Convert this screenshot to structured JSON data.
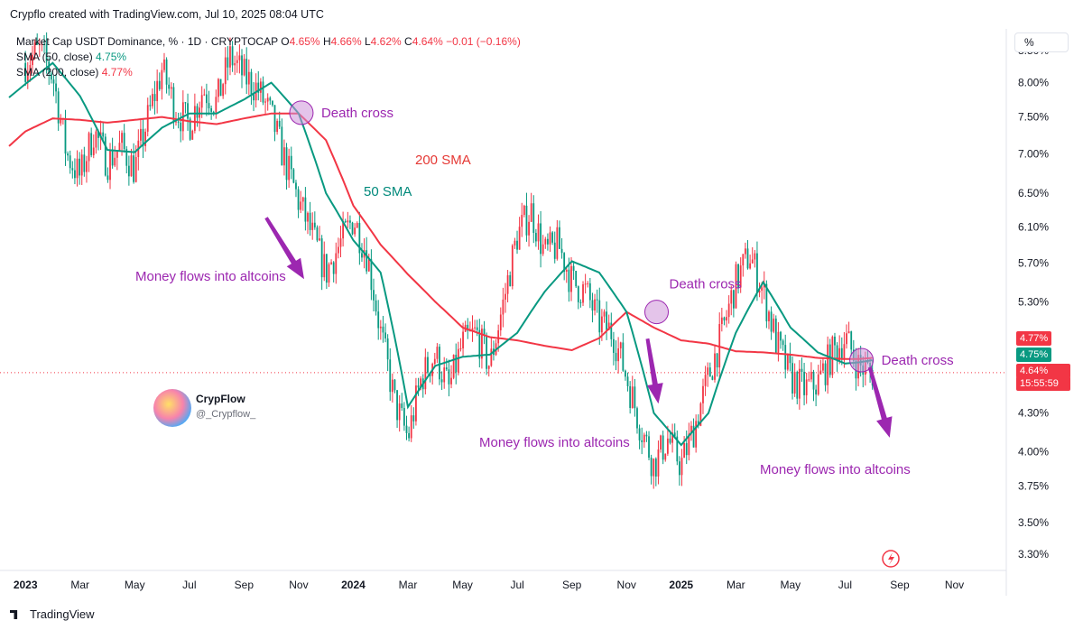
{
  "header": {
    "text": "Crypflo created with TradingView.com, Jul 10, 2025 08:04 UTC"
  },
  "legend": {
    "title": "Market Cap USDT Dominance, % · 1D · CRYPTOCAP",
    "o_label": "O",
    "o": "4.65%",
    "h_label": "H",
    "h": "4.66%",
    "l_label": "L",
    "l": "4.62%",
    "c_label": "C",
    "c": "4.64%",
    "change": "−0.01 (−0.16%)",
    "sma50_label": "SMA (50, close)",
    "sma50_value": "4.75%",
    "sma200_label": "SMA (200, close)",
    "sma200_value": "4.77%"
  },
  "scale_button": "%",
  "badges": {
    "sma200": "4.77%",
    "sma50": "4.75%",
    "price": "4.64%",
    "countdown": "15:55:59"
  },
  "brand": {
    "name": "CrypFlow",
    "handle": "@_Crypflow_"
  },
  "footer": {
    "logo_text": "TradingView"
  },
  "colors": {
    "up": "#089981",
    "down": "#f23645",
    "sma50": "#089981",
    "sma200": "#f23645",
    "annotation": "#9c27b0"
  },
  "chart_data": {
    "type": "line",
    "title": "Market Cap USDT Dominance, % · 1D · CRYPTOCAP",
    "y_ticks": [
      "8.50%",
      "8.00%",
      "7.50%",
      "7.00%",
      "6.50%",
      "6.10%",
      "5.70%",
      "5.30%",
      "4.30%",
      "4.00%",
      "3.75%",
      "3.50%",
      "3.30%"
    ],
    "y_tick_values": [
      8.5,
      8.0,
      7.5,
      7.0,
      6.5,
      6.1,
      5.7,
      5.3,
      4.3,
      4.0,
      3.75,
      3.5,
      3.3
    ],
    "x_ticks": [
      "2023",
      "Mar",
      "May",
      "Jul",
      "Sep",
      "Nov",
      "2024",
      "Mar",
      "May",
      "Jul",
      "Sep",
      "Nov",
      "2025",
      "Mar",
      "May",
      "Jul",
      "Sep",
      "Nov"
    ],
    "x_tick_positions": [
      0,
      2,
      4,
      6,
      8,
      10,
      12,
      14,
      16,
      18,
      20,
      22,
      24,
      26,
      28,
      30,
      32,
      34
    ],
    "ylim": [
      3.2,
      8.85
    ],
    "xlim": [
      -0.6,
      35.8
    ],
    "series": [
      {
        "name": "USDT Dominance (close)",
        "style": "candles",
        "x": [
          0,
          0.5,
          1,
          1.5,
          2,
          2.5,
          3,
          3.5,
          4,
          4.5,
          5,
          5.5,
          6,
          6.5,
          7,
          7.5,
          8,
          8.5,
          9,
          9.5,
          10,
          10.5,
          11,
          11.5,
          12,
          12.5,
          13,
          13.5,
          14,
          14.5,
          15,
          15.5,
          16,
          16.5,
          17,
          17.5,
          18,
          18.5,
          19,
          19.5,
          20,
          20.5,
          21,
          21.5,
          22,
          22.5,
          23,
          23.5,
          24,
          24.5,
          25,
          25.5,
          26,
          26.5,
          27,
          27.5,
          28,
          28.5,
          29,
          29.5,
          30,
          30.5,
          31
        ],
        "y": [
          8.3,
          8.5,
          8.1,
          7.0,
          6.7,
          7.3,
          6.9,
          7.1,
          6.8,
          7.5,
          8.2,
          7.6,
          7.4,
          7.9,
          7.7,
          8.4,
          8.1,
          7.9,
          7.5,
          6.9,
          6.4,
          6.0,
          5.6,
          5.9,
          6.2,
          5.8,
          5.0,
          4.4,
          4.1,
          4.6,
          4.8,
          4.5,
          4.9,
          5.0,
          4.7,
          5.3,
          6.0,
          6.3,
          5.8,
          5.9,
          5.5,
          5.4,
          5.1,
          5.0,
          4.6,
          4.2,
          3.9,
          4.1,
          3.9,
          4.2,
          4.6,
          5.0,
          5.5,
          5.8,
          5.4,
          4.9,
          4.6,
          4.5,
          4.55,
          4.8,
          4.95,
          4.7,
          4.64
        ]
      },
      {
        "name": "SMA (50, close)",
        "style": "line",
        "x": [
          -0.6,
          0,
          1,
          2,
          3,
          4,
          5,
          6,
          7,
          8,
          9,
          10,
          11,
          12,
          13,
          14,
          15,
          16,
          17,
          18,
          19,
          20,
          21,
          22,
          23,
          24,
          25,
          26,
          27,
          28,
          29,
          30,
          30.5,
          31
        ],
        "y": [
          7.78,
          7.98,
          8.3,
          7.8,
          7.05,
          7.02,
          7.35,
          7.55,
          7.55,
          7.75,
          8.0,
          7.55,
          6.5,
          5.95,
          5.6,
          4.35,
          4.7,
          4.78,
          4.8,
          5.0,
          5.4,
          5.72,
          5.6,
          5.2,
          4.3,
          4.05,
          4.3,
          5.0,
          5.5,
          5.05,
          4.82,
          4.72,
          4.73,
          4.75
        ]
      },
      {
        "name": "SMA (200, close)",
        "style": "line",
        "x": [
          -0.6,
          0,
          1,
          2,
          3,
          4,
          5,
          6,
          7,
          8,
          9,
          10,
          11,
          12,
          13,
          14,
          15,
          16,
          17,
          18,
          19,
          20,
          21,
          22,
          23,
          24,
          25,
          26,
          27,
          28,
          29,
          30,
          30.5,
          31
        ],
        "y": [
          7.1,
          7.3,
          7.48,
          7.46,
          7.42,
          7.46,
          7.5,
          7.44,
          7.4,
          7.48,
          7.55,
          7.55,
          7.18,
          6.35,
          5.9,
          5.58,
          5.3,
          5.05,
          4.96,
          4.93,
          4.88,
          4.84,
          4.95,
          5.2,
          5.05,
          4.93,
          4.9,
          4.83,
          4.82,
          4.8,
          4.77,
          4.76,
          4.76,
          4.77
        ]
      }
    ],
    "annotations": {
      "death_cross": "Death cross",
      "label_200": "200 SMA",
      "label_50": "50 SMA",
      "money_flow": "Money flows into altcoins",
      "cross_points": [
        [
          10.1,
          7.56
        ],
        [
          23.1,
          5.2
        ],
        [
          30.6,
          4.75
        ]
      ],
      "arrows": [
        [
          10.2,
          6.0
        ],
        [
          22.9,
          4.7
        ],
        [
          31.3,
          4.5
        ]
      ]
    }
  }
}
